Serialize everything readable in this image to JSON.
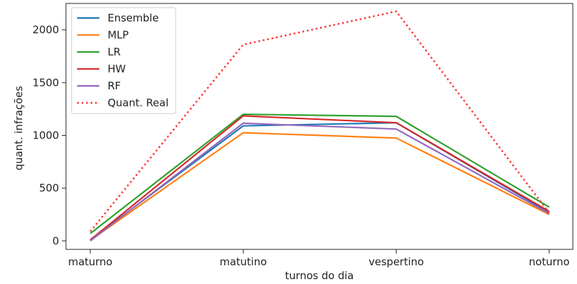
{
  "chart_data": {
    "type": "line",
    "title": "",
    "xlabel": "turnos do dia",
    "ylabel": "quant. infrações",
    "categories": [
      "maturno",
      "matutino",
      "vespertino",
      "noturno"
    ],
    "ylim": [
      -80,
      2250
    ],
    "yticks": [
      0,
      500,
      1000,
      1500,
      2000
    ],
    "grid": false,
    "legend_position": "top-left",
    "series": [
      {
        "name": "Ensemble",
        "color": "#1f77b4",
        "style": "solid",
        "values": [
          10,
          1090,
          1120,
          270
        ]
      },
      {
        "name": "MLP",
        "color": "#ff7f0e",
        "style": "solid",
        "values": [
          5,
          1025,
          975,
          250
        ]
      },
      {
        "name": "LR",
        "color": "#2ca02c",
        "style": "solid",
        "values": [
          70,
          1200,
          1180,
          320
        ]
      },
      {
        "name": "HW",
        "color": "#d62728",
        "style": "solid",
        "values": [
          10,
          1185,
          1120,
          280
        ]
      },
      {
        "name": "RF",
        "color": "#9467bd",
        "style": "solid",
        "values": [
          0,
          1115,
          1060,
          260
        ]
      },
      {
        "name": "Quant. Real",
        "color": "#ff3333",
        "style": "dotted",
        "values": [
          90,
          1860,
          2175,
          265
        ]
      }
    ]
  }
}
